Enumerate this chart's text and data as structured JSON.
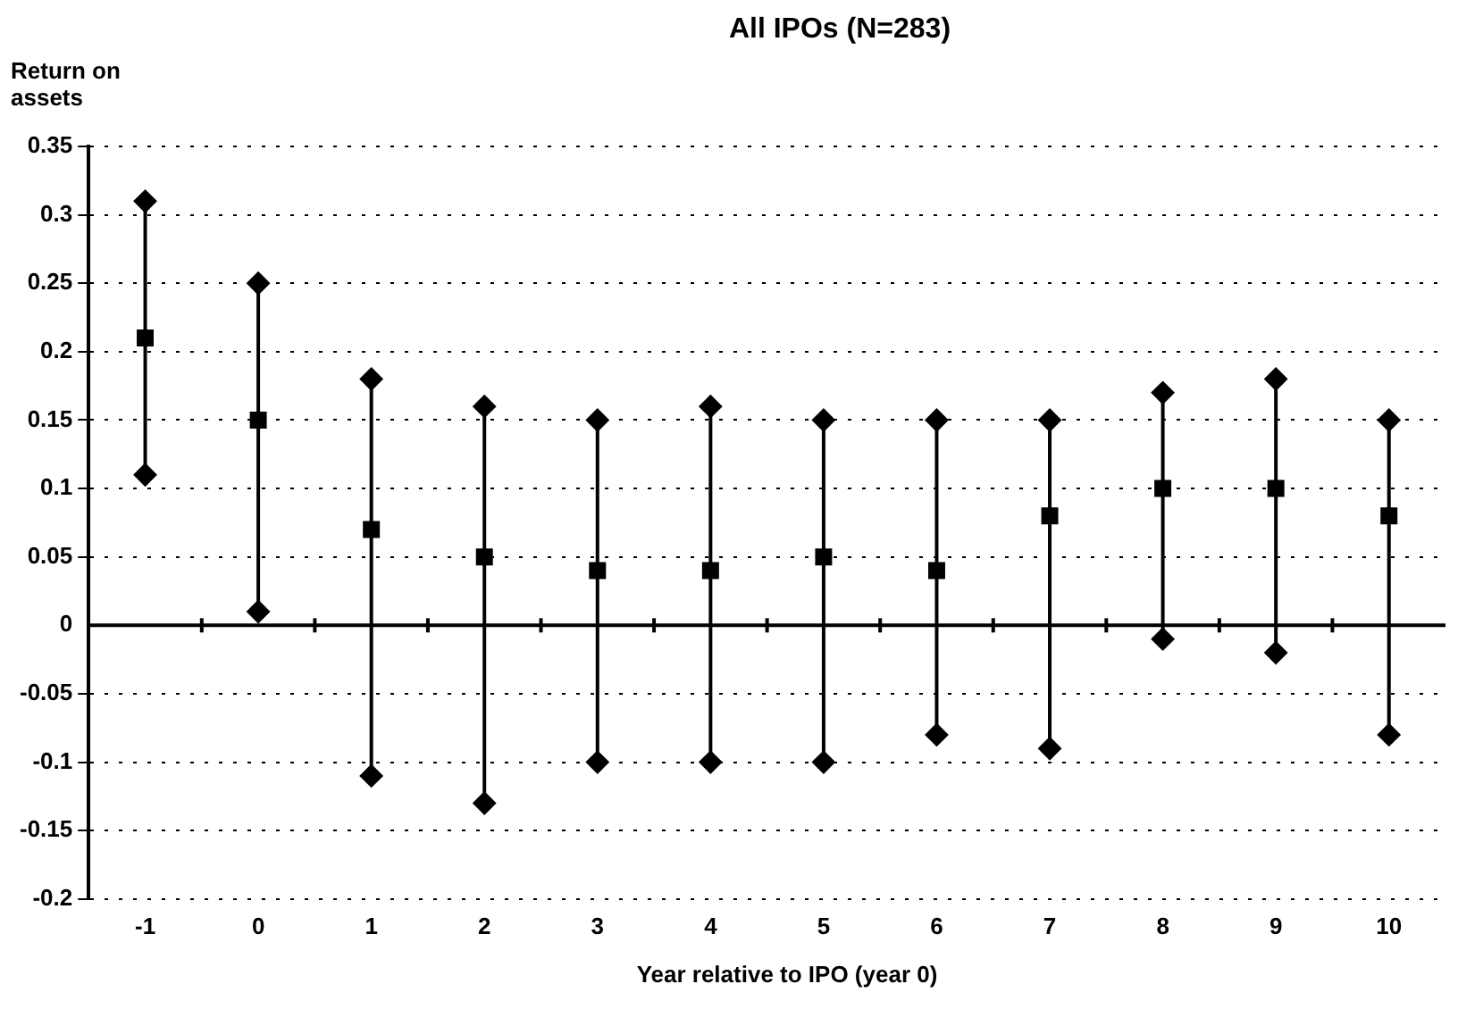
{
  "chart_data": {
    "type": "scatter",
    "title": "All IPOs (N=283)",
    "xlabel": "Year relative to IPO (year 0)",
    "ylabel": "Return on assets",
    "categories": [
      "-1",
      "0",
      "1",
      "2",
      "3",
      "4",
      "5",
      "6",
      "7",
      "8",
      "9",
      "10"
    ],
    "series": [
      {
        "color": "#000000",
        "marker": "diamond",
        "values": [
          0.31,
          0.25,
          0.18,
          0.16,
          0.15,
          0.16,
          0.15,
          0.15,
          0.15,
          0.17,
          0.18,
          0.15
        ]
      },
      {
        "color": "#000000",
        "marker": "diamond",
        "values": [
          0.11,
          0.01,
          -0.11,
          -0.13,
          -0.1,
          -0.1,
          -0.1,
          -0.08,
          -0.09,
          -0.01,
          -0.02,
          -0.08
        ]
      },
      {
        "color": "#000000",
        "marker": "square",
        "values": [
          0.21,
          0.15,
          0.07,
          0.05,
          0.04,
          0.04,
          0.05,
          0.04,
          0.08,
          0.1,
          0.1,
          0.08
        ]
      }
    ],
    "ylim": [
      -0.2,
      0.35
    ],
    "yticks": [
      -0.2,
      -0.15,
      -0.1,
      -0.05,
      0,
      0.05,
      0.1,
      0.15,
      0.2,
      0.25,
      0.3,
      0.35
    ],
    "grid": "y",
    "legend": false
  }
}
